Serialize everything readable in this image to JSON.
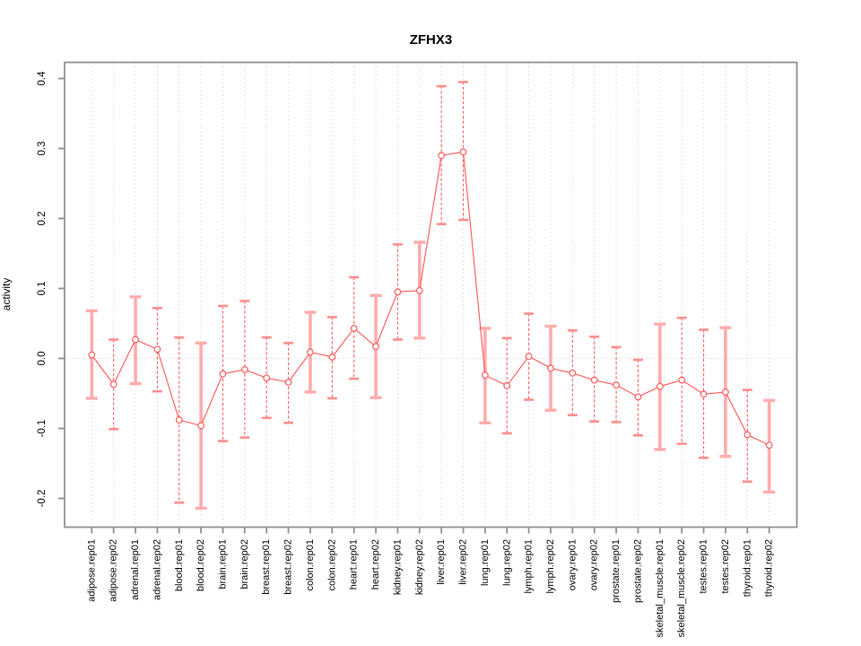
{
  "figure": {
    "background": "#ffffff"
  },
  "colors": {
    "series_red": "#ff5a5a",
    "marker_fill": "#ffffff",
    "thick_bar_pink": "#ffacac",
    "cap_pink": "#ff8d8d",
    "grid_gray": "#d9d9d9",
    "axis_gray": "#8f8f8f",
    "text_black": "#000000"
  },
  "chart_data": {
    "type": "line",
    "title": "ZFHX3",
    "xlabel": "",
    "ylabel": "activity",
    "ylim": [
      -0.22,
      0.42
    ],
    "ytick_values": [
      -0.2,
      -0.1,
      0.0,
      0.1,
      0.2,
      0.3,
      0.4
    ],
    "ytick_labels": [
      "-0.2",
      "-0.1",
      "0.0",
      "0.1",
      "0.2",
      "0.3",
      "0.4"
    ],
    "grid": "vertical dotted line at every category; horizontal dotted line at y=0",
    "legend": "none",
    "marker": "open-circle",
    "error_bars": true,
    "categories": [
      "adipose.rep01",
      "adipose.rep02",
      "adrenal.rep01",
      "adrenal.rep02",
      "blood.rep01",
      "blood.rep02",
      "brain.rep01",
      "brain.rep02",
      "breast.rep01",
      "breast.rep02",
      "colon.rep01",
      "colon.rep02",
      "heart.rep01",
      "heart.rep02",
      "kidney.rep01",
      "kidney.rep02",
      "liver.rep01",
      "liver.rep02",
      "lung.rep01",
      "lung.rep02",
      "lymph.rep01",
      "lymph.rep02",
      "ovary.rep01",
      "ovary.rep02",
      "prostate.rep01",
      "prostate.rep02",
      "skeletal_muscle.rep01",
      "skeletal_muscle.rep02",
      "testes.rep01",
      "testes.rep02",
      "thyroid.rep01",
      "thyroid.rep02"
    ],
    "series": [
      {
        "name": "activity",
        "values": [
          0.005,
          -0.037,
          0.027,
          0.013,
          -0.088,
          -0.096,
          -0.022,
          -0.016,
          -0.028,
          -0.034,
          0.009,
          0.002,
          0.043,
          0.017,
          0.095,
          0.097,
          0.29,
          0.295,
          -0.024,
          -0.039,
          0.003,
          -0.014,
          -0.021,
          -0.031,
          -0.038,
          -0.055,
          -0.04,
          -0.031,
          -0.051,
          -0.048,
          -0.109,
          -0.124
        ],
        "err_hi": [
          0.068,
          0.027,
          0.088,
          0.072,
          0.03,
          0.022,
          0.075,
          0.082,
          0.03,
          0.022,
          0.066,
          0.059,
          0.116,
          0.09,
          0.163,
          0.166,
          0.389,
          0.395,
          0.043,
          0.029,
          0.064,
          0.046,
          0.04,
          0.031,
          0.016,
          -0.002,
          0.049,
          0.058,
          0.041,
          0.044,
          -0.045,
          -0.06
        ],
        "err_lo": [
          -0.057,
          -0.101,
          -0.036,
          -0.047,
          -0.206,
          -0.214,
          -0.118,
          -0.113,
          -0.085,
          -0.092,
          -0.048,
          -0.057,
          -0.029,
          -0.056,
          0.027,
          0.029,
          0.192,
          0.198,
          -0.092,
          -0.107,
          -0.059,
          -0.074,
          -0.081,
          -0.09,
          -0.091,
          -0.11,
          -0.13,
          -0.122,
          -0.142,
          -0.14,
          -0.176,
          -0.191
        ],
        "thick_bar": [
          true,
          false,
          true,
          false,
          false,
          true,
          false,
          false,
          false,
          false,
          true,
          false,
          false,
          true,
          false,
          true,
          false,
          false,
          true,
          false,
          false,
          true,
          false,
          false,
          false,
          false,
          true,
          false,
          false,
          true,
          false,
          true
        ]
      }
    ]
  }
}
